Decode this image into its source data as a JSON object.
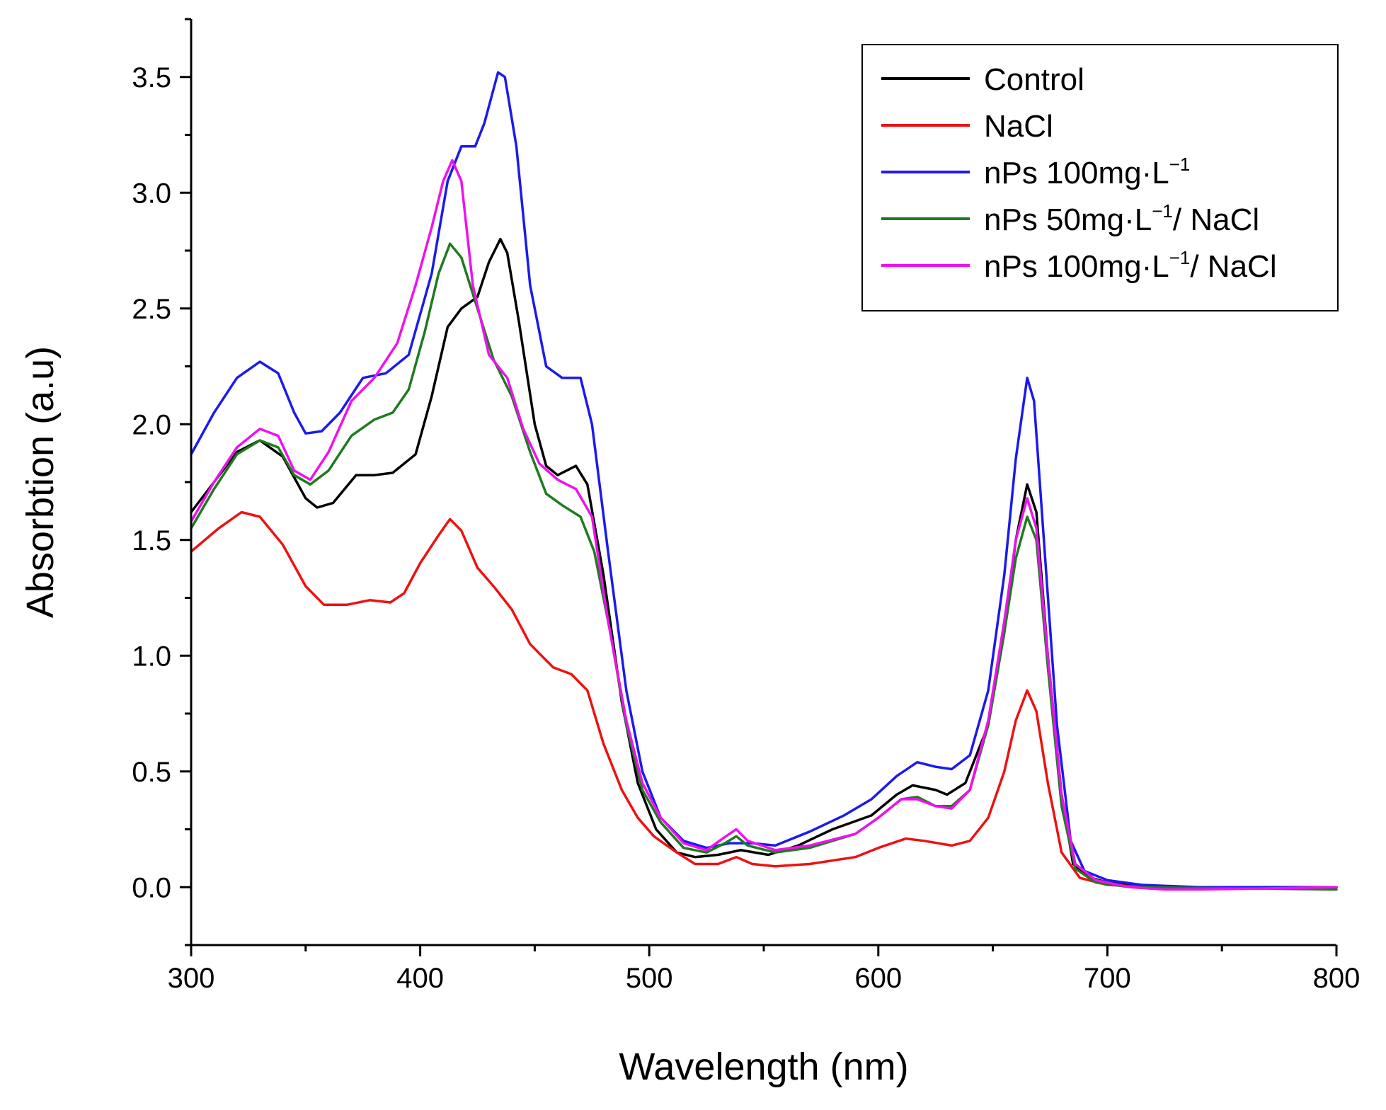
{
  "chart_data": {
    "type": "line",
    "title": "",
    "xlabel": "Wavelength (nm)",
    "ylabel": "Absorbtion (a.u)",
    "xlim": [
      300,
      800
    ],
    "ylim": [
      -0.25,
      3.75
    ],
    "xticks": [
      300,
      400,
      500,
      600,
      700,
      800
    ],
    "xtick_labels": [
      "300",
      "400",
      "500",
      "600",
      "700",
      "800"
    ],
    "yticks": [
      0.0,
      0.5,
      1.0,
      1.5,
      2.0,
      2.5,
      3.0,
      3.5
    ],
    "ytick_labels": [
      "0.0",
      "0.5",
      "1.0",
      "1.5",
      "2.0",
      "2.5",
      "3.0",
      "3.5"
    ],
    "legend_position": "top-right",
    "series": [
      {
        "name": "Control",
        "legend_parts": {
          "main": "Control",
          "sup": "",
          "tail": ""
        },
        "color": "#000000",
        "points": [
          [
            300,
            1.62
          ],
          [
            310,
            1.75
          ],
          [
            320,
            1.88
          ],
          [
            330,
            1.93
          ],
          [
            340,
            1.86
          ],
          [
            350,
            1.68
          ],
          [
            355,
            1.64
          ],
          [
            362,
            1.66
          ],
          [
            372,
            1.78
          ],
          [
            380,
            1.78
          ],
          [
            388,
            1.79
          ],
          [
            398,
            1.87
          ],
          [
            405,
            2.12
          ],
          [
            412,
            2.42
          ],
          [
            418,
            2.5
          ],
          [
            425,
            2.55
          ],
          [
            430,
            2.7
          ],
          [
            435,
            2.8
          ],
          [
            438,
            2.74
          ],
          [
            443,
            2.45
          ],
          [
            450,
            2.0
          ],
          [
            455,
            1.82
          ],
          [
            460,
            1.78
          ],
          [
            468,
            1.82
          ],
          [
            473,
            1.74
          ],
          [
            480,
            1.35
          ],
          [
            488,
            0.8
          ],
          [
            495,
            0.45
          ],
          [
            503,
            0.25
          ],
          [
            512,
            0.15
          ],
          [
            520,
            0.13
          ],
          [
            530,
            0.14
          ],
          [
            540,
            0.16
          ],
          [
            552,
            0.14
          ],
          [
            565,
            0.18
          ],
          [
            580,
            0.25
          ],
          [
            597,
            0.31
          ],
          [
            608,
            0.4
          ],
          [
            615,
            0.44
          ],
          [
            625,
            0.42
          ],
          [
            630,
            0.4
          ],
          [
            638,
            0.45
          ],
          [
            648,
            0.7
          ],
          [
            655,
            1.1
          ],
          [
            660,
            1.5
          ],
          [
            665,
            1.74
          ],
          [
            669,
            1.62
          ],
          [
            674,
            1.0
          ],
          [
            680,
            0.4
          ],
          [
            685,
            0.1
          ],
          [
            693,
            0.04
          ],
          [
            700,
            0.02
          ],
          [
            720,
            0.0
          ],
          [
            800,
            0.0
          ]
        ]
      },
      {
        "name": "NaCl",
        "legend_parts": {
          "main": "NaCl",
          "sup": "",
          "tail": ""
        },
        "color": "#ee1111",
        "points": [
          [
            300,
            1.45
          ],
          [
            312,
            1.55
          ],
          [
            322,
            1.62
          ],
          [
            330,
            1.6
          ],
          [
            340,
            1.48
          ],
          [
            350,
            1.3
          ],
          [
            358,
            1.22
          ],
          [
            368,
            1.22
          ],
          [
            378,
            1.24
          ],
          [
            387,
            1.23
          ],
          [
            393,
            1.27
          ],
          [
            400,
            1.4
          ],
          [
            408,
            1.52
          ],
          [
            413,
            1.59
          ],
          [
            418,
            1.54
          ],
          [
            425,
            1.38
          ],
          [
            432,
            1.3
          ],
          [
            440,
            1.2
          ],
          [
            448,
            1.05
          ],
          [
            458,
            0.95
          ],
          [
            466,
            0.92
          ],
          [
            473,
            0.85
          ],
          [
            480,
            0.62
          ],
          [
            488,
            0.42
          ],
          [
            495,
            0.3
          ],
          [
            502,
            0.22
          ],
          [
            512,
            0.15
          ],
          [
            520,
            0.1
          ],
          [
            530,
            0.1
          ],
          [
            538,
            0.13
          ],
          [
            545,
            0.1
          ],
          [
            555,
            0.09
          ],
          [
            570,
            0.1
          ],
          [
            590,
            0.13
          ],
          [
            600,
            0.17
          ],
          [
            612,
            0.21
          ],
          [
            620,
            0.2
          ],
          [
            632,
            0.18
          ],
          [
            640,
            0.2
          ],
          [
            648,
            0.3
          ],
          [
            655,
            0.5
          ],
          [
            660,
            0.72
          ],
          [
            665,
            0.85
          ],
          [
            669,
            0.76
          ],
          [
            674,
            0.45
          ],
          [
            680,
            0.15
          ],
          [
            688,
            0.04
          ],
          [
            700,
            0.01
          ],
          [
            720,
            0.0
          ],
          [
            800,
            0.0
          ]
        ]
      },
      {
        "name": "nPs 100mg·L−1",
        "legend_parts": {
          "main": "nPs 100mg·L",
          "sup": "−1",
          "tail": ""
        },
        "color": "#1a1aee",
        "points": [
          [
            300,
            1.87
          ],
          [
            310,
            2.05
          ],
          [
            320,
            2.2
          ],
          [
            330,
            2.27
          ],
          [
            338,
            2.22
          ],
          [
            345,
            2.05
          ],
          [
            350,
            1.96
          ],
          [
            357,
            1.97
          ],
          [
            365,
            2.05
          ],
          [
            375,
            2.2
          ],
          [
            385,
            2.22
          ],
          [
            395,
            2.3
          ],
          [
            405,
            2.65
          ],
          [
            412,
            3.05
          ],
          [
            418,
            3.2
          ],
          [
            424,
            3.2
          ],
          [
            428,
            3.3
          ],
          [
            434,
            3.52
          ],
          [
            437,
            3.5
          ],
          [
            442,
            3.2
          ],
          [
            448,
            2.6
          ],
          [
            455,
            2.25
          ],
          [
            462,
            2.2
          ],
          [
            470,
            2.2
          ],
          [
            475,
            2.0
          ],
          [
            482,
            1.45
          ],
          [
            490,
            0.85
          ],
          [
            497,
            0.5
          ],
          [
            505,
            0.3
          ],
          [
            515,
            0.2
          ],
          [
            525,
            0.17
          ],
          [
            535,
            0.19
          ],
          [
            545,
            0.19
          ],
          [
            555,
            0.18
          ],
          [
            570,
            0.24
          ],
          [
            585,
            0.31
          ],
          [
            597,
            0.38
          ],
          [
            608,
            0.48
          ],
          [
            617,
            0.54
          ],
          [
            625,
            0.52
          ],
          [
            632,
            0.51
          ],
          [
            640,
            0.57
          ],
          [
            648,
            0.85
          ],
          [
            655,
            1.35
          ],
          [
            660,
            1.85
          ],
          [
            665,
            2.2
          ],
          [
            668,
            2.1
          ],
          [
            673,
            1.4
          ],
          [
            678,
            0.7
          ],
          [
            684,
            0.2
          ],
          [
            690,
            0.07
          ],
          [
            700,
            0.03
          ],
          [
            715,
            0.01
          ],
          [
            740,
            0.0
          ],
          [
            800,
            0.0
          ]
        ]
      },
      {
        "name": "nPs 50mg·L−1/ NaCl",
        "legend_parts": {
          "main": "nPs 50mg·L",
          "sup": "−1",
          "tail": "/ NaCl"
        },
        "color": "#1f7a1f",
        "points": [
          [
            300,
            1.55
          ],
          [
            310,
            1.72
          ],
          [
            320,
            1.87
          ],
          [
            330,
            1.93
          ],
          [
            338,
            1.9
          ],
          [
            345,
            1.78
          ],
          [
            352,
            1.74
          ],
          [
            360,
            1.8
          ],
          [
            370,
            1.95
          ],
          [
            380,
            2.02
          ],
          [
            388,
            2.05
          ],
          [
            395,
            2.15
          ],
          [
            402,
            2.4
          ],
          [
            408,
            2.65
          ],
          [
            413,
            2.78
          ],
          [
            418,
            2.72
          ],
          [
            425,
            2.5
          ],
          [
            432,
            2.28
          ],
          [
            440,
            2.12
          ],
          [
            448,
            1.88
          ],
          [
            455,
            1.7
          ],
          [
            462,
            1.65
          ],
          [
            470,
            1.6
          ],
          [
            476,
            1.45
          ],
          [
            483,
            1.1
          ],
          [
            490,
            0.7
          ],
          [
            497,
            0.42
          ],
          [
            505,
            0.28
          ],
          [
            515,
            0.17
          ],
          [
            525,
            0.15
          ],
          [
            533,
            0.19
          ],
          [
            538,
            0.22
          ],
          [
            543,
            0.18
          ],
          [
            555,
            0.15
          ],
          [
            570,
            0.17
          ],
          [
            590,
            0.23
          ],
          [
            600,
            0.3
          ],
          [
            610,
            0.38
          ],
          [
            617,
            0.39
          ],
          [
            625,
            0.35
          ],
          [
            632,
            0.35
          ],
          [
            640,
            0.42
          ],
          [
            648,
            0.7
          ],
          [
            655,
            1.1
          ],
          [
            660,
            1.42
          ],
          [
            665,
            1.6
          ],
          [
            669,
            1.5
          ],
          [
            674,
            0.95
          ],
          [
            680,
            0.35
          ],
          [
            686,
            0.08
          ],
          [
            695,
            0.02
          ],
          [
            710,
            0.0
          ],
          [
            800,
            -0.01
          ]
        ]
      },
      {
        "name": "nPs 100mg·L−1/ NaCl",
        "legend_parts": {
          "main": "nPs 100mg·L",
          "sup": "−1",
          "tail": "/ NaCl"
        },
        "color": "#ee11ee",
        "points": [
          [
            300,
            1.58
          ],
          [
            310,
            1.75
          ],
          [
            320,
            1.9
          ],
          [
            330,
            1.98
          ],
          [
            338,
            1.95
          ],
          [
            345,
            1.8
          ],
          [
            352,
            1.76
          ],
          [
            360,
            1.88
          ],
          [
            370,
            2.1
          ],
          [
            380,
            2.2
          ],
          [
            390,
            2.35
          ],
          [
            398,
            2.6
          ],
          [
            405,
            2.85
          ],
          [
            410,
            3.05
          ],
          [
            414,
            3.14
          ],
          [
            418,
            3.05
          ],
          [
            423,
            2.6
          ],
          [
            430,
            2.3
          ],
          [
            438,
            2.2
          ],
          [
            445,
            1.98
          ],
          [
            452,
            1.83
          ],
          [
            460,
            1.76
          ],
          [
            468,
            1.72
          ],
          [
            475,
            1.6
          ],
          [
            482,
            1.15
          ],
          [
            490,
            0.72
          ],
          [
            497,
            0.45
          ],
          [
            505,
            0.3
          ],
          [
            515,
            0.19
          ],
          [
            525,
            0.16
          ],
          [
            532,
            0.21
          ],
          [
            538,
            0.25
          ],
          [
            543,
            0.2
          ],
          [
            555,
            0.16
          ],
          [
            570,
            0.18
          ],
          [
            590,
            0.23
          ],
          [
            600,
            0.3
          ],
          [
            610,
            0.38
          ],
          [
            617,
            0.38
          ],
          [
            625,
            0.35
          ],
          [
            632,
            0.34
          ],
          [
            640,
            0.42
          ],
          [
            648,
            0.72
          ],
          [
            655,
            1.15
          ],
          [
            660,
            1.5
          ],
          [
            665,
            1.68
          ],
          [
            669,
            1.55
          ],
          [
            674,
            1.0
          ],
          [
            680,
            0.4
          ],
          [
            686,
            0.1
          ],
          [
            695,
            0.03
          ],
          [
            710,
            0.0
          ],
          [
            725,
            -0.01
          ],
          [
            740,
            -0.01
          ],
          [
            800,
            0.0
          ]
        ]
      }
    ]
  }
}
